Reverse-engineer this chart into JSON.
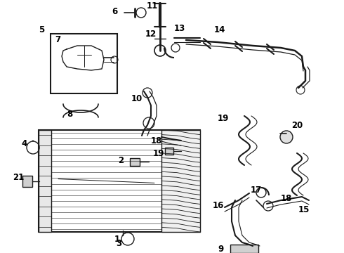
{
  "bg_color": "#ffffff",
  "line_color": "#1a1a1a",
  "label_color": "#000000",
  "lfs": 8.5,
  "lfw": "bold",
  "figw": 4.9,
  "figh": 3.6,
  "dpi": 100
}
